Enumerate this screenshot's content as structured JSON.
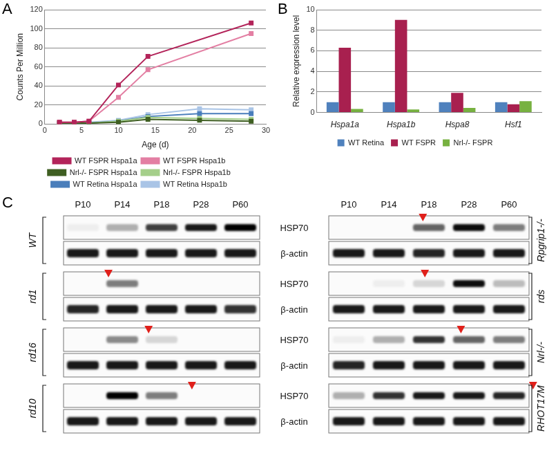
{
  "chart_data": [
    {
      "type": "line",
      "panel_label": "A",
      "x_label": "Age (d)",
      "y_label": "Counts Per Million",
      "xlim": [
        0,
        30
      ],
      "xticks": [
        0,
        5,
        10,
        15,
        20,
        25,
        30
      ],
      "ylim": [
        0,
        120
      ],
      "yticks": [
        0,
        20,
        40,
        60,
        80,
        100,
        120
      ],
      "grid": true,
      "legend": "bottom",
      "marker": "square",
      "series": [
        {
          "name": "WT FSPR Hspa1a",
          "color": "#b3245a",
          "x": [
            2,
            4,
            6,
            10,
            14,
            28
          ],
          "values": [
            2,
            2,
            3,
            41,
            71,
            106
          ]
        },
        {
          "name": "WT FSPR Hspa1b",
          "color": "#e37fa3",
          "x": [
            2,
            4,
            6,
            10,
            14,
            28
          ],
          "values": [
            2,
            2,
            3,
            28,
            57,
            95
          ]
        },
        {
          "name": "Nrl-/- FSPR Hspa1a",
          "color": "#3f5f22",
          "x": [
            2,
            4,
            6,
            10,
            14,
            21,
            28
          ],
          "values": [
            1,
            1,
            1,
            2,
            5,
            4,
            3
          ]
        },
        {
          "name": "Nrl-/- FSPR Hspa1b",
          "color": "#a5cf8a",
          "x": [
            2,
            4,
            6,
            10,
            14,
            21,
            28
          ],
          "values": [
            1,
            1,
            1,
            3,
            7,
            6,
            5
          ]
        },
        {
          "name": "WT Retina Hspa1a",
          "color": "#4a7ebb",
          "x": [
            2,
            4,
            6,
            10,
            14,
            21,
            28
          ],
          "values": [
            1,
            1,
            1,
            3,
            8,
            11,
            11
          ]
        },
        {
          "name": "WT Retina Hspa1b",
          "color": "#a9c4e6",
          "x": [
            2,
            4,
            6,
            10,
            14,
            21,
            28
          ],
          "values": [
            1,
            1,
            2,
            4,
            10,
            16,
            15
          ]
        }
      ]
    },
    {
      "type": "bar",
      "panel_label": "B",
      "y_label": "Relative expression level",
      "categories": [
        "Hspa1a",
        "Hspa1b",
        "Hspa8",
        "Hsf1"
      ],
      "ylim": [
        0,
        10
      ],
      "yticks": [
        0,
        2,
        4,
        6,
        8,
        10
      ],
      "grid": true,
      "legend": "bottom",
      "series": [
        {
          "name": "WT Retina",
          "color": "#4f81bd",
          "values": [
            1,
            1,
            1,
            1
          ]
        },
        {
          "name": "WT FSPR",
          "color": "#a8204f",
          "values": [
            6.3,
            9.0,
            1.9,
            0.8
          ]
        },
        {
          "name": "Nrl-/- FSPR",
          "color": "#77b140",
          "values": [
            0.35,
            0.3,
            0.45,
            1.1
          ]
        }
      ]
    }
  ],
  "blots": {
    "panel_label": "C",
    "lanes": [
      "P10",
      "P14",
      "P18",
      "P28",
      "P60"
    ],
    "row_labels": [
      "HSP70",
      "β-actin"
    ],
    "left": [
      {
        "name": "WT",
        "hsp70": [
          0.05,
          0.3,
          0.75,
          0.9,
          1.0
        ],
        "actin": [
          0.9,
          0.9,
          0.9,
          0.9,
          0.9
        ],
        "arrow_lane": null
      },
      {
        "name": "rd1",
        "hsp70": [
          0,
          0.5,
          0,
          0,
          0
        ],
        "actin": [
          0.85,
          0.9,
          0.9,
          0.9,
          0.8
        ],
        "arrow_lane": 0.65
      },
      {
        "name": "rd16",
        "hsp70": [
          0,
          0.45,
          0.15,
          0,
          0
        ],
        "actin": [
          0.9,
          0.9,
          0.9,
          0.9,
          0.9
        ],
        "arrow_lane": 1.67
      },
      {
        "name": "rd10",
        "hsp70": [
          0,
          1.0,
          0.5,
          0,
          0
        ],
        "actin": [
          0.9,
          0.9,
          0.9,
          0.9,
          0.9
        ],
        "arrow_lane": 2.77
      }
    ],
    "right": [
      {
        "name": "Rpgrip1-/-",
        "hsp70": [
          0,
          0,
          0.6,
          0.95,
          0.5
        ],
        "actin": [
          0.9,
          0.9,
          0.85,
          0.9,
          0.9
        ],
        "arrow_lane": 1.85
      },
      {
        "name": "rds",
        "hsp70": [
          0,
          0.05,
          0.15,
          0.95,
          0.25
        ],
        "actin": [
          0.9,
          0.9,
          0.9,
          0.9,
          0.9
        ],
        "arrow_lane": 1.9
      },
      {
        "name": "Nrl-/-",
        "hsp70": [
          0.05,
          0.3,
          0.8,
          0.6,
          0.5
        ],
        "actin": [
          0.85,
          0.9,
          0.9,
          0.9,
          0.9
        ],
        "arrow_lane": 2.8
      },
      {
        "name": "RHOT17M",
        "hsp70": [
          0.3,
          0.8,
          0.9,
          0.9,
          0.85
        ],
        "actin": [
          0.9,
          0.9,
          0.9,
          0.9,
          0.9
        ],
        "arrow_lane": 4.6
      }
    ]
  }
}
